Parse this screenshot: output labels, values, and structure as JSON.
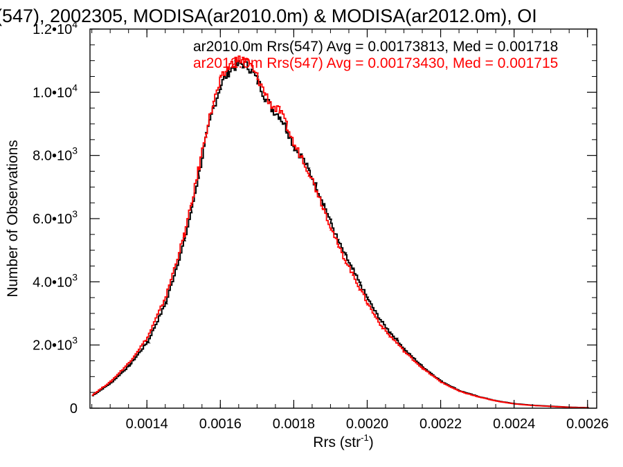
{
  "chart_data": {
    "type": "line",
    "title": "(547), 2002305, MODISA(ar2010.0m) & MODISA(ar2012.0m), OI",
    "xlabel": "Rrs (str",
    "xlabel_sup": "-1",
    "xlabel_close": ")",
    "ylabel": "Number of Observations",
    "xlim": [
      0.001245,
      0.002625
    ],
    "ylim": [
      0,
      12000
    ],
    "x_ticks": [
      0.0014,
      0.0016,
      0.0018,
      0.002,
      0.0022,
      0.0024,
      0.0026
    ],
    "x_tick_labels": [
      "0.0014",
      "0.0016",
      "0.0018",
      "0.0020",
      "0.0022",
      "0.0024",
      "0.0026"
    ],
    "y_ticks": [
      {
        "value": 0,
        "mantissa": "0",
        "exponent": ""
      },
      {
        "value": 2000,
        "mantissa": "2.0•10",
        "exponent": "3"
      },
      {
        "value": 4000,
        "mantissa": "4.0•10",
        "exponent": "3"
      },
      {
        "value": 6000,
        "mantissa": "6.0•10",
        "exponent": "3"
      },
      {
        "value": 8000,
        "mantissa": "8.0•10",
        "exponent": "3"
      },
      {
        "value": 10000,
        "mantissa": "1.0•10",
        "exponent": "4"
      },
      {
        "value": 12000,
        "mantissa": "1.2•10",
        "exponent": "4"
      }
    ],
    "annotations": [
      {
        "text": "ar2010.0m Rrs(547) Avg = 0.00173813, Med = 0.001718",
        "color": "#000000"
      },
      {
        "text": "ar2012.0m Rrs(547) Avg = 0.00173430, Med = 0.001715",
        "color": "#ff0000"
      }
    ],
    "series": [
      {
        "color": "#000000",
        "x": [
          0.00125,
          0.0013,
          0.00135,
          0.0014,
          0.00145,
          0.0015,
          0.00152,
          0.00154,
          0.00156,
          0.00158,
          0.0016,
          0.00162,
          0.00164,
          0.00166,
          0.00168,
          0.0017,
          0.00172,
          0.00174,
          0.00176,
          0.00178,
          0.0018,
          0.00182,
          0.00184,
          0.00186,
          0.00188,
          0.0019,
          0.00192,
          0.00194,
          0.00196,
          0.00198,
          0.002,
          0.00202,
          0.00204,
          0.00206,
          0.00208,
          0.0021,
          0.00215,
          0.0022,
          0.00225,
          0.0023,
          0.00235,
          0.0024,
          0.00245,
          0.0025,
          0.00255,
          0.0026
        ],
        "y": [
          400,
          800,
          1350,
          2100,
          3350,
          5300,
          6300,
          7450,
          8600,
          9550,
          10250,
          10650,
          10850,
          10900,
          10750,
          10350,
          9850,
          9450,
          9250,
          8800,
          8250,
          7950,
          7500,
          7000,
          6450,
          5850,
          5250,
          4800,
          4350,
          3900,
          3450,
          3050,
          2700,
          2400,
          2150,
          1850,
          1300,
          850,
          550,
          370,
          230,
          140,
          90,
          60,
          30,
          15
        ]
      },
      {
        "color": "#ff0000",
        "x": [
          0.00125,
          0.0013,
          0.00135,
          0.0014,
          0.00145,
          0.0015,
          0.00152,
          0.00154,
          0.00156,
          0.00158,
          0.0016,
          0.00162,
          0.00164,
          0.00166,
          0.00168,
          0.0017,
          0.00172,
          0.00174,
          0.00176,
          0.00178,
          0.0018,
          0.00182,
          0.00184,
          0.00186,
          0.00188,
          0.0019,
          0.00192,
          0.00194,
          0.00196,
          0.00198,
          0.002,
          0.00202,
          0.00204,
          0.00206,
          0.00208,
          0.0021,
          0.00215,
          0.0022,
          0.00225,
          0.0023,
          0.00235,
          0.0024,
          0.00245,
          0.0025,
          0.00255,
          0.0026
        ],
        "y": [
          420,
          850,
          1450,
          2250,
          3550,
          5500,
          6500,
          7650,
          8800,
          9700,
          10400,
          10800,
          11000,
          11050,
          10850,
          10450,
          9950,
          9550,
          9400,
          8900,
          8300,
          7950,
          7450,
          6900,
          6300,
          5700,
          5100,
          4650,
          4200,
          3750,
          3300,
          2900,
          2550,
          2280,
          2050,
          1780,
          1250,
          820,
          530,
          360,
          225,
          135,
          85,
          55,
          28,
          12
        ]
      }
    ]
  }
}
